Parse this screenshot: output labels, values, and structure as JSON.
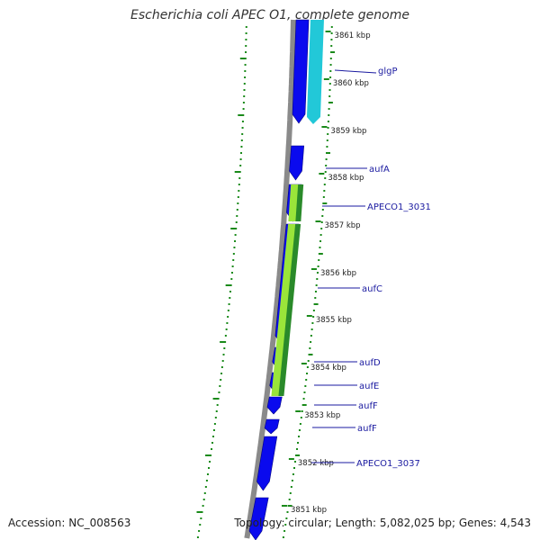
{
  "title": "Escherichia coli APEC O1, complete genome",
  "accession_line": "Accession: NC_008563",
  "topology_line": "Topology: circular; Length: 5,082,025 bp; Genes: 4,543",
  "scale_ticks": [
    "3861 kbp",
    "3860 kbp",
    "3859 kbp",
    "3858 kbp",
    "3857 kbp",
    "3856 kbp",
    "3855 kbp",
    "3854 kbp",
    "3853 kbp",
    "3852 kbp",
    "3851 kbp"
  ],
  "gene_labels": [
    "glgP",
    "aufA",
    "APECO1_3031",
    "aufC",
    "aufD",
    "aufE",
    "aufF",
    "aufF",
    "APECO1_3037"
  ],
  "colors": {
    "cds": "#0a0aee",
    "backbone": "#8a8a8a",
    "gc_skew": "#1a8a1a",
    "teal_track": "#22c8d8",
    "green_track": "#9ae53a",
    "dark_green_track": "#2a8a2a",
    "label": "#1a1aa0"
  }
}
